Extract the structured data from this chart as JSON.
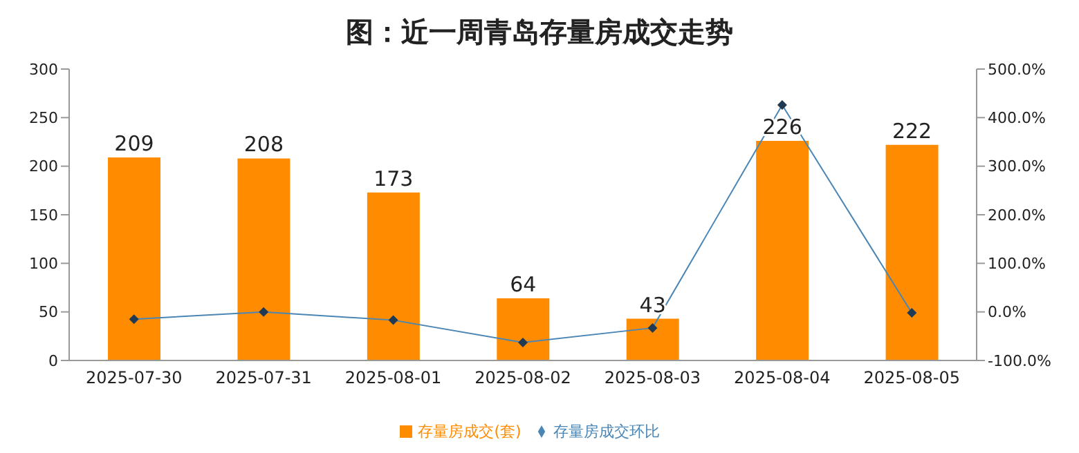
{
  "chart_data": {
    "type": "bar",
    "title": "图：近一周青岛存量房成交走势",
    "categories": [
      "2025-07-30",
      "2025-07-31",
      "2025-08-01",
      "2025-08-02",
      "2025-08-03",
      "2025-08-04",
      "2025-08-05"
    ],
    "series": [
      {
        "name": "存量房成交(套)",
        "color": "#ff8c00",
        "values": [
          209,
          208,
          173,
          64,
          43,
          226,
          222
        ],
        "value_labels": [
          "209",
          "208",
          "173",
          "64",
          "43",
          "226",
          "222"
        ]
      },
      {
        "name": "存量房成交环比",
        "type": "line",
        "axis": "y2",
        "color": "#4a86b5",
        "marker": "diamond",
        "values": [
          -15,
          0,
          -17,
          -63,
          -33,
          426,
          -2
        ]
      }
    ],
    "ylim": [
      0,
      300
    ],
    "yticks": [
      0,
      50,
      100,
      150,
      200,
      250,
      300
    ],
    "y2lim": [
      -100,
      500
    ],
    "y2ticks": [
      {
        "value": -100,
        "label": "-100.0%"
      },
      {
        "value": 0,
        "label": "0.0%"
      },
      {
        "value": 100,
        "label": "100.0%"
      },
      {
        "value": 200,
        "label": "200.0%"
      },
      {
        "value": 300,
        "label": "300.0%"
      },
      {
        "value": 400,
        "label": "400.0%"
      },
      {
        "value": 500,
        "label": "500.0%"
      }
    ],
    "legend": "bottom",
    "grid": false
  }
}
